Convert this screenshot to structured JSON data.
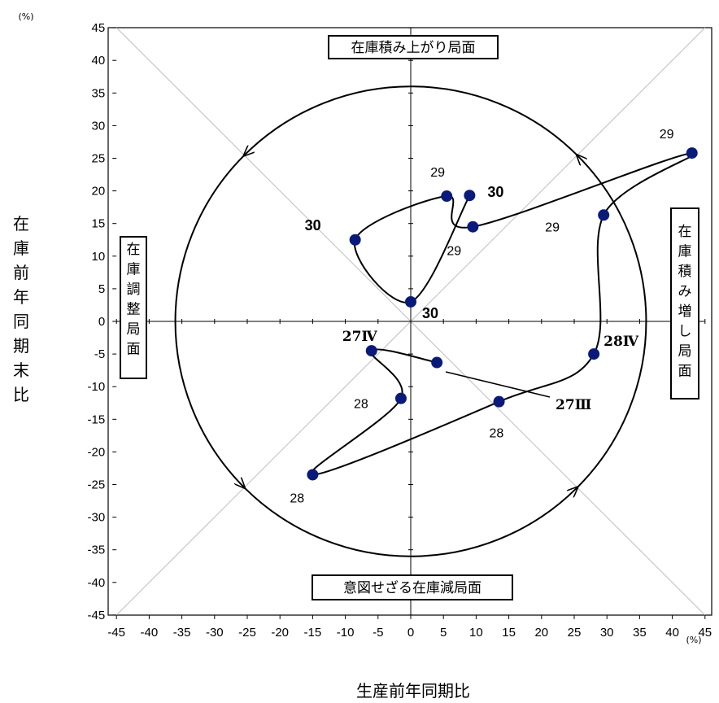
{
  "chart_data": {
    "type": "scatter",
    "x_unit": "(%)",
    "y_unit": "(%)",
    "xlabel": "生産前年同期比",
    "ylabel": "在庫前年同期末比",
    "xlim": [
      -45,
      45
    ],
    "ylim": [
      -45,
      45
    ],
    "x_ticks": [
      "-45",
      "-40",
      "-35",
      "-30",
      "-25",
      "-20",
      "-15",
      "-10",
      "-5",
      "0",
      "5",
      "10",
      "15",
      "20",
      "25",
      "30",
      "35",
      "40",
      "45"
    ],
    "y_ticks": [
      "45",
      "40",
      "35",
      "30",
      "25",
      "20",
      "15",
      "10",
      "5",
      "0",
      "-5",
      "-10",
      "-15",
      "-20",
      "-25",
      "-30",
      "-35",
      "-40",
      "-45"
    ],
    "grid": false,
    "diagonals": true,
    "cycle_circle": {
      "center": [
        0,
        0
      ],
      "radius": 36,
      "direction": "counterclockwise"
    },
    "quadrant_labels": {
      "top": "在庫積み上がり局面",
      "right": "在庫積み増し局面",
      "bottom": "意図せざる在庫減局面",
      "left": "在庫調整局面"
    },
    "points": [
      {
        "x": 4,
        "y": -6.3,
        "label": ""
      },
      {
        "x": -6,
        "y": -4.5,
        "label": "27Ⅳ"
      },
      {
        "x": -1.5,
        "y": -11.8,
        "label": "28"
      },
      {
        "x": -15,
        "y": -23.5,
        "label": "28"
      },
      {
        "x": 13.5,
        "y": -12.3,
        "label": "28"
      },
      {
        "x": 28,
        "y": -5,
        "label": "28Ⅳ"
      },
      {
        "x": 29.5,
        "y": 16.3,
        "label": "29"
      },
      {
        "x": 43,
        "y": 25.8,
        "label": "29"
      },
      {
        "x": 9.5,
        "y": 14.5,
        "label": "29"
      },
      {
        "x": 5.5,
        "y": 19.2,
        "label": "29"
      },
      {
        "x": -8.5,
        "y": 12.5,
        "label": "30"
      },
      {
        "x": 0,
        "y": 3,
        "label": "30"
      },
      {
        "x": 9,
        "y": 19.3,
        "label": "30"
      }
    ],
    "callout_label": "27Ⅲ"
  }
}
